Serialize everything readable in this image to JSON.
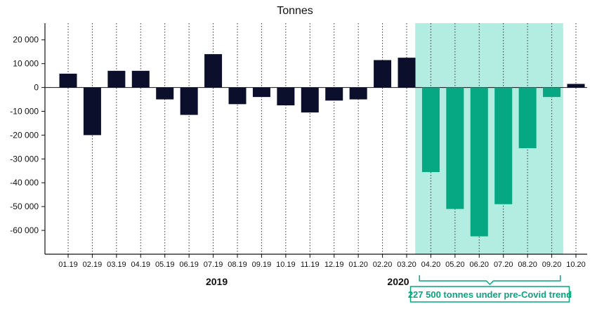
{
  "chart_data": {
    "type": "bar",
    "title": "Tonnes",
    "categories": [
      "01.19",
      "02.19",
      "03.19",
      "04.19",
      "05.19",
      "06.19",
      "07.19",
      "08.19",
      "09.19",
      "10.19",
      "11.19",
      "12.19",
      "01.20",
      "02.20",
      "03.20",
      "04.20",
      "05.20",
      "06.20",
      "07.20",
      "08.20",
      "09.20",
      "10.20"
    ],
    "values": [
      5800,
      -20000,
      7000,
      7000,
      -5000,
      -11500,
      14000,
      -7000,
      -4000,
      -7500,
      -10500,
      -5500,
      -5000,
      11500,
      12500,
      -35500,
      -51000,
      -62500,
      -49000,
      -25500,
      -4000,
      1500
    ],
    "ylim": [
      -70000,
      27000
    ],
    "yticks": [
      20000,
      10000,
      0,
      -10000,
      -20000,
      -30000,
      -40000,
      -50000,
      -60000
    ],
    "ytick_labels": [
      "20 000",
      "10 000",
      "0",
      "-10 000",
      "-20 000",
      "-30 000",
      "-40 000",
      "-50 000",
      "-60 000"
    ],
    "highlight_range": [
      "04.20",
      "09.20"
    ],
    "year_labels": [
      {
        "text": "2019",
        "category": "07.19"
      },
      {
        "text": "2020",
        "category": "03.20"
      }
    ],
    "annotation": "227 500 tonnes under pre-Covid trend",
    "grid": "vertical dotted",
    "colors": {
      "bar": "#0b0f2b",
      "highlight_bar": "#05a882",
      "highlight_band": "#b3ece0",
      "annotation": "#0aa37f"
    }
  }
}
